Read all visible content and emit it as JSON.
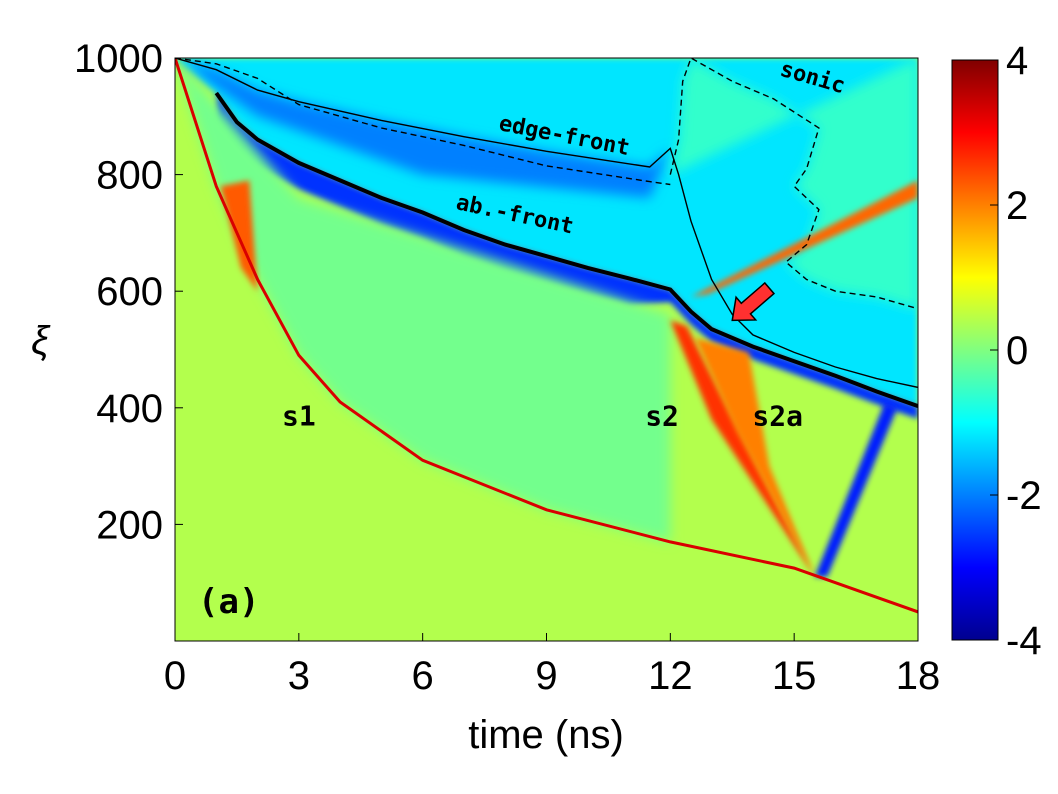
{
  "chart_data": {
    "type": "heatmap",
    "panel_label": "(a)",
    "xlabel": "time (ns)",
    "ylabel": "ξ",
    "xlim": [
      0,
      18
    ],
    "ylim": [
      0,
      1000
    ],
    "x_ticks": [
      0,
      3,
      6,
      9,
      12,
      15,
      18
    ],
    "y_ticks": [
      200,
      400,
      600,
      800,
      1000
    ],
    "colorbar": {
      "range": [
        -4,
        4
      ],
      "ticks": [
        4,
        2,
        0,
        -2,
        -4
      ],
      "tick_labels": [
        "4",
        "2",
        "0",
        "-2",
        "-4"
      ],
      "colormap": [
        "#00008f",
        "#0000ff",
        "#0080ff",
        "#00ffff",
        "#80ff80",
        "#ffff00",
        "#ff8000",
        "#ff0000",
        "#800000"
      ]
    },
    "background_value": 0.4,
    "curves": [
      {
        "name": "ab.-front",
        "style": "thick-solid",
        "points": [
          [
            1.0,
            940
          ],
          [
            1.5,
            890
          ],
          [
            2.0,
            860
          ],
          [
            3.0,
            820
          ],
          [
            4.0,
            790
          ],
          [
            5.0,
            760
          ],
          [
            6.0,
            735
          ],
          [
            7.0,
            705
          ],
          [
            8.0,
            680
          ],
          [
            9.0,
            660
          ],
          [
            10.0,
            640
          ],
          [
            11.0,
            622
          ],
          [
            12.0,
            603
          ],
          [
            12.5,
            565
          ],
          [
            13.0,
            535
          ],
          [
            14.0,
            505
          ],
          [
            15.0,
            480
          ],
          [
            16.0,
            455
          ],
          [
            17.0,
            428
          ],
          [
            18.0,
            403
          ]
        ]
      },
      {
        "name": "edge-front",
        "style": "thin-solid",
        "points": [
          [
            0.0,
            1000
          ],
          [
            1.0,
            980
          ],
          [
            2.0,
            945
          ],
          [
            3.0,
            925
          ],
          [
            5.0,
            893
          ],
          [
            7.0,
            865
          ],
          [
            9.0,
            840
          ],
          [
            11.5,
            813
          ],
          [
            12.0,
            845
          ],
          [
            12.2,
            800
          ],
          [
            12.5,
            720
          ],
          [
            13.0,
            620
          ],
          [
            13.5,
            560
          ],
          [
            14.0,
            525
          ],
          [
            15.0,
            495
          ],
          [
            16.0,
            470
          ],
          [
            17.0,
            450
          ],
          [
            18.0,
            435
          ]
        ]
      },
      {
        "name": "dashed-boundary",
        "style": "thin-dashed",
        "points": [
          [
            0.0,
            1000
          ],
          [
            1.0,
            990
          ],
          [
            2.0,
            965
          ],
          [
            3.0,
            920
          ],
          [
            5.0,
            880
          ],
          [
            7.0,
            850
          ],
          [
            9.0,
            815
          ],
          [
            11.5,
            788
          ],
          [
            12.0,
            783
          ]
        ]
      },
      {
        "name": "sonic",
        "style": "thin-dashed",
        "points": [
          [
            12.0,
            800
          ],
          [
            12.2,
            860
          ],
          [
            12.3,
            960
          ],
          [
            12.5,
            1000
          ],
          [
            13.5,
            960
          ],
          [
            14.5,
            930
          ],
          [
            15.6,
            880
          ],
          [
            15.3,
            810
          ],
          [
            15.0,
            780
          ],
          [
            15.6,
            740
          ],
          [
            15.3,
            680
          ],
          [
            14.8,
            650
          ],
          [
            15.3,
            620
          ],
          [
            16.0,
            600
          ],
          [
            17.0,
            590
          ],
          [
            18.0,
            570
          ]
        ]
      }
    ],
    "shock_lines": [
      {
        "name": "s1",
        "points": [
          [
            0.0,
            1000
          ],
          [
            1.0,
            780
          ],
          [
            2.0,
            620
          ],
          [
            3.0,
            490
          ],
          [
            4.0,
            410
          ],
          [
            6.0,
            310
          ],
          [
            9.0,
            225
          ],
          [
            12.0,
            170
          ],
          [
            15.0,
            125
          ],
          [
            18.0,
            50
          ]
        ]
      }
    ],
    "annotations": [
      {
        "text": "edge-front",
        "x": 9.4,
        "y": 855,
        "rotation_deg": 11
      },
      {
        "text": "ab.-front",
        "x": 8.2,
        "y": 720,
        "rotation_deg": 12
      },
      {
        "text": "sonic",
        "x": 15.4,
        "y": 955,
        "rotation_deg": 16
      },
      {
        "text": "s1",
        "x": 3.0,
        "y": 370,
        "rotation_deg": 0
      },
      {
        "text": "s2",
        "x": 11.8,
        "y": 370,
        "rotation_deg": 0
      },
      {
        "text": "s2a",
        "x": 14.6,
        "y": 370,
        "rotation_deg": 0
      }
    ],
    "arrow": {
      "color": "#ff3030",
      "tip": [
        13.5,
        550
      ],
      "tail": [
        14.4,
        605
      ]
    }
  }
}
